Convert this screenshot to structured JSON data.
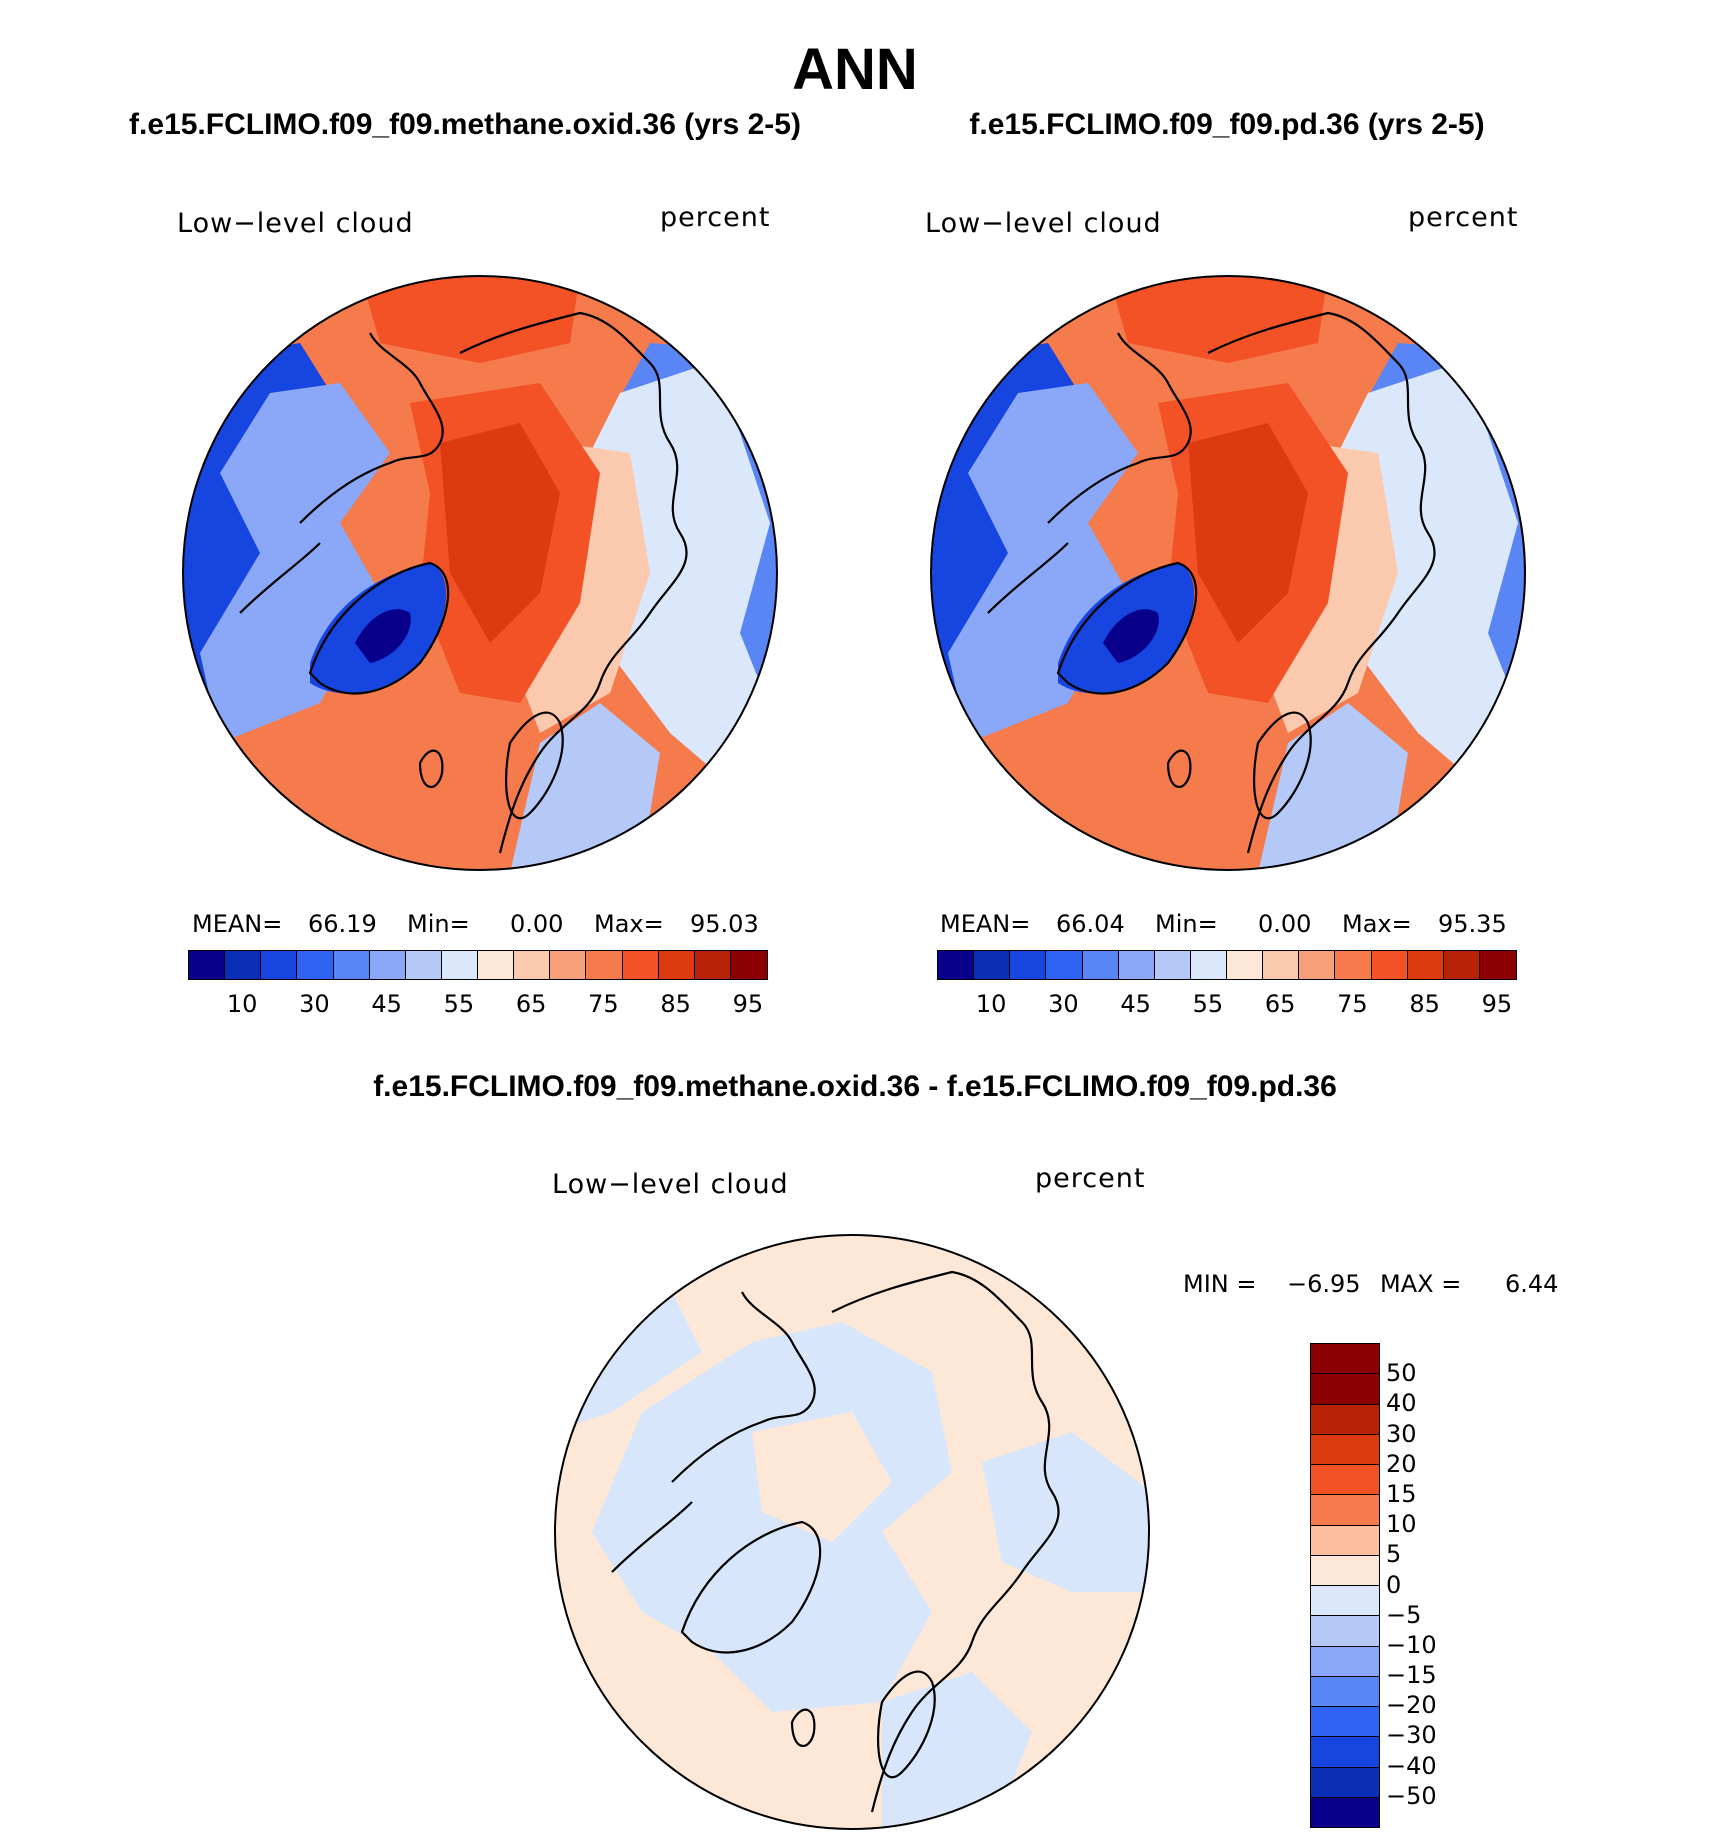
{
  "title": "ANN",
  "panels": [
    {
      "case_title": "f.e15.FCLIMO.f09_f09.methane.oxid.36 (yrs 2-5)",
      "variable": "Low−level cloud",
      "units": "percent",
      "mean_label": "MEAN=",
      "mean": "66.19",
      "min_label": "Min=",
      "min": "0.00",
      "max_label": "Max=",
      "max": "95.03"
    },
    {
      "case_title": "f.e15.FCLIMO.f09_f09.pd.36 (yrs 2-5)",
      "variable": "Low−level cloud",
      "units": "percent",
      "mean_label": "MEAN=",
      "mean": "66.04",
      "min_label": "Min=",
      "min": "0.00",
      "max_label": "Max=",
      "max": "95.35"
    }
  ],
  "diff": {
    "title": "f.e15.FCLIMO.f09_f09.methane.oxid.36 - f.e15.FCLIMO.f09_f09.pd.36",
    "variable": "Low−level cloud",
    "units": "percent",
    "min_label": "MIN =",
    "min": "−6.95",
    "max_label": "MAX =",
    "max": "6.44"
  },
  "colorbar_main": {
    "colors": [
      "#08008a",
      "#0a2fb6",
      "#1645e0",
      "#2f64f2",
      "#5a86f5",
      "#8aa8f7",
      "#b5c9f9",
      "#dbe7fb",
      "#fde8d8",
      "#fbc9ad",
      "#f7a17a",
      "#f57a4c",
      "#f25226",
      "#dd3a11",
      "#b82307",
      "#8c0004"
    ],
    "tick_labels": [
      "10",
      "30",
      "45",
      "55",
      "65",
      "75",
      "85",
      "95"
    ]
  },
  "colorbar_diff": {
    "colors": [
      "#8c0004",
      "#b82307",
      "#dd3a11",
      "#f25226",
      "#f57a4c",
      "#fbbfa0",
      "#fde8d8",
      "#dbe7fb",
      "#b5c9f9",
      "#8aa8f7",
      "#5a86f5",
      "#2f64f2",
      "#1645e0",
      "#0a2fb6",
      "#08008a"
    ],
    "tick_labels": [
      "50",
      "40",
      "30",
      "20",
      "15",
      "10",
      "5",
      "0",
      "−5",
      "−10",
      "−15",
      "−20",
      "−30",
      "−40",
      "−50"
    ]
  },
  "map_colors": {
    "high": "#dd3a11",
    "mid_high": "#f25226",
    "mid": "#f57a4c",
    "light_warm": "#fbc9ad",
    "neutral": "#fde8d8",
    "cool": "#dbe7fb",
    "blue": "#5a86f5",
    "deep_blue": "#1645e0",
    "darkest": "#08008a",
    "diff_warm": "#fde8d8",
    "diff_cool": "#d7e6fa"
  }
}
